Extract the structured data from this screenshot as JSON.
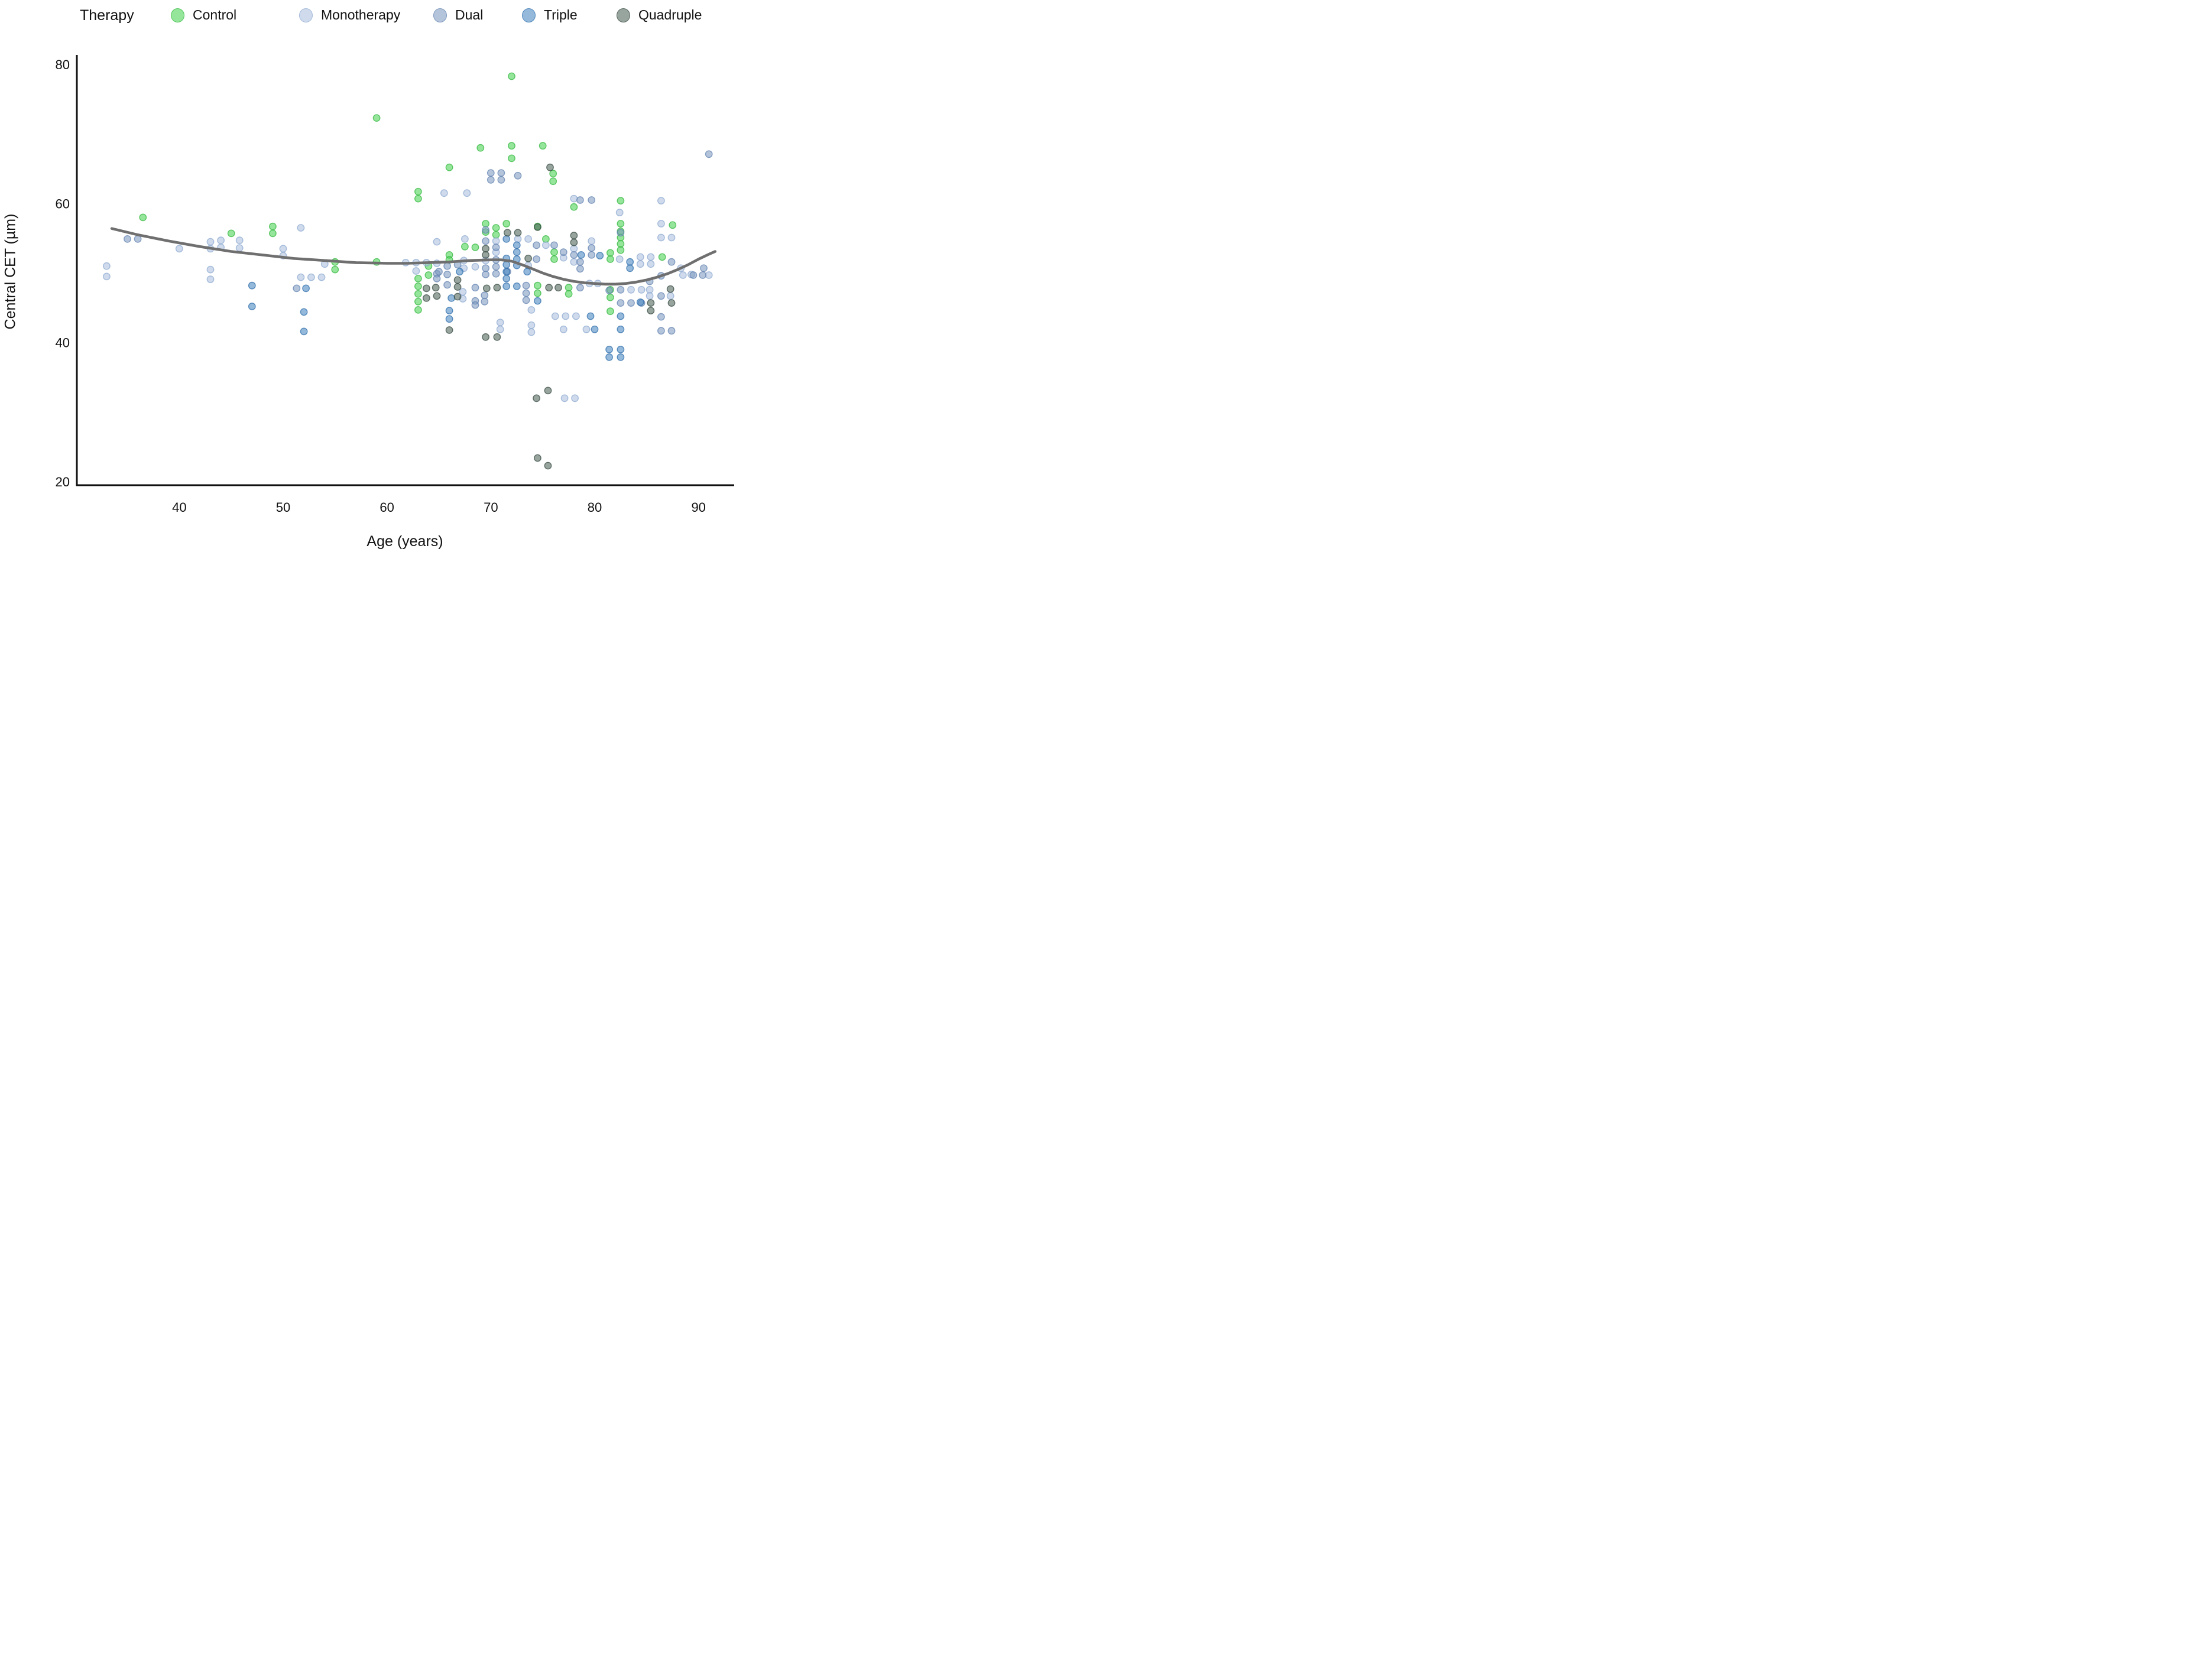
{
  "legend": {
    "title": "Therapy",
    "items": [
      {
        "label": "Control",
        "color": "#3ecf49",
        "stroke": "#2fb53a"
      },
      {
        "label": "Monotherapy",
        "color": "#a7bddd",
        "stroke": "#8aa6cf"
      },
      {
        "label": "Dual",
        "color": "#7795bd",
        "stroke": "#5f7fae"
      },
      {
        "label": "Triple",
        "color": "#3c80bd",
        "stroke": "#2a6aa8"
      },
      {
        "label": "Quadruple",
        "color": "#44594f",
        "stroke": "#33473e"
      }
    ]
  },
  "axes": {
    "x_title": "Age (years)",
    "y_title": "Central CET (µm)",
    "x_ticks": [
      40,
      50,
      60,
      70,
      80,
      90
    ],
    "y_ticks": [
      20,
      40,
      60,
      80
    ],
    "x_range": [
      30.2,
      93.2
    ],
    "y_range": [
      19.4,
      81.3
    ],
    "axis_color": "#111111",
    "grid": false,
    "legend_position": "top"
  },
  "chart_data": {
    "type": "scatter",
    "title": "",
    "xlabel": "Age (years)",
    "ylabel": "Central CET (µm)",
    "marker_opacity": 0.55,
    "series": [
      {
        "name": "Control",
        "color": "#3ecf49",
        "stroke": "#2fb53a",
        "points": [
          [
            36.5,
            58
          ],
          [
            45,
            55.7
          ],
          [
            49,
            56.7
          ],
          [
            49,
            55.7
          ],
          [
            55,
            51.6
          ],
          [
            55,
            50.5
          ],
          [
            59,
            72.3
          ],
          [
            59,
            51.6
          ],
          [
            63,
            61.7
          ],
          [
            63,
            60.7
          ],
          [
            63,
            49.2
          ],
          [
            63,
            48.1
          ],
          [
            63,
            47
          ],
          [
            63,
            45.9
          ],
          [
            63,
            44.7
          ],
          [
            64,
            51
          ],
          [
            64,
            49.7
          ],
          [
            66,
            65.2
          ],
          [
            66,
            52.6
          ],
          [
            66,
            51.9
          ],
          [
            67.5,
            53.8
          ],
          [
            68.5,
            53.7
          ],
          [
            69,
            68
          ],
          [
            69.5,
            57.1
          ],
          [
            69.5,
            55.9
          ],
          [
            70.5,
            56.5
          ],
          [
            70.5,
            55.5
          ],
          [
            71.5,
            57.1
          ],
          [
            72,
            78.3
          ],
          [
            72,
            68.3
          ],
          [
            72,
            66.5
          ],
          [
            74.5,
            56.7
          ],
          [
            74.5,
            48.2
          ],
          [
            74.5,
            47.1
          ],
          [
            75,
            68.3
          ],
          [
            75.3,
            54.9
          ],
          [
            76,
            64.3
          ],
          [
            76,
            63.2
          ],
          [
            76.1,
            53
          ],
          [
            76.1,
            52
          ],
          [
            77.5,
            47.9
          ],
          [
            77.5,
            47
          ],
          [
            78,
            59.5
          ],
          [
            81.5,
            52.9
          ],
          [
            81.5,
            52
          ],
          [
            81.5,
            47.6
          ],
          [
            81.5,
            46.5
          ],
          [
            81.5,
            44.5
          ],
          [
            82.5,
            60.4
          ],
          [
            82.5,
            57.1
          ],
          [
            82.5,
            56
          ],
          [
            82.5,
            55.1
          ],
          [
            82.5,
            54.2
          ],
          [
            82.5,
            53.3
          ],
          [
            86.5,
            52.3
          ],
          [
            87.5,
            56.9
          ]
        ]
      },
      {
        "name": "Monotherapy",
        "color": "#a7bddd",
        "stroke": "#8aa6cf",
        "points": [
          [
            33,
            51
          ],
          [
            33,
            49.5
          ],
          [
            40,
            53.5
          ],
          [
            43,
            54.5
          ],
          [
            43,
            53.5
          ],
          [
            43,
            50.5
          ],
          [
            43,
            49.1
          ],
          [
            44,
            54.7
          ],
          [
            44,
            53.7
          ],
          [
            45.8,
            54.7
          ],
          [
            45.8,
            53.6
          ],
          [
            50,
            53.5
          ],
          [
            50,
            52.5
          ],
          [
            51.7,
            56.5
          ],
          [
            51.7,
            49.4
          ],
          [
            52.7,
            49.4
          ],
          [
            53.7,
            49.4
          ],
          [
            54,
            51.3
          ],
          [
            61.8,
            51.5
          ],
          [
            62.8,
            51.5
          ],
          [
            62.8,
            50.3
          ],
          [
            63.8,
            51.5
          ],
          [
            64.8,
            54.5
          ],
          [
            64.8,
            51.4
          ],
          [
            65.5,
            61.5
          ],
          [
            67.7,
            61.5
          ],
          [
            67.5,
            54.9
          ],
          [
            67.4,
            51.8
          ],
          [
            67.4,
            50.7
          ],
          [
            67.3,
            47.3
          ],
          [
            67.3,
            46.3
          ],
          [
            68.5,
            50.9
          ],
          [
            69.5,
            51.8
          ],
          [
            70.5,
            54.6
          ],
          [
            70.5,
            53
          ],
          [
            70.9,
            42.9
          ],
          [
            70.9,
            41.9
          ],
          [
            72.6,
            54.9
          ],
          [
            73.6,
            54.9
          ],
          [
            73.6,
            51.1
          ],
          [
            73.9,
            44.7
          ],
          [
            73.9,
            42.5
          ],
          [
            73.9,
            41.5
          ],
          [
            75.3,
            54
          ],
          [
            76.2,
            43.8
          ],
          [
            77.2,
            43.8
          ],
          [
            78.2,
            43.8
          ],
          [
            77,
            52.2
          ],
          [
            77,
            41.9
          ],
          [
            77.1,
            32
          ],
          [
            78.1,
            32
          ],
          [
            78,
            60.7
          ],
          [
            78,
            53.5
          ],
          [
            78,
            51.6
          ],
          [
            79.2,
            41.9
          ],
          [
            79.7,
            54.6
          ],
          [
            79.5,
            48.5
          ],
          [
            80.3,
            48.5
          ],
          [
            82.4,
            58.7
          ],
          [
            82.4,
            52
          ],
          [
            83.5,
            47.6
          ],
          [
            84.5,
            47.6
          ],
          [
            85.3,
            47.6
          ],
          [
            85.3,
            46.7
          ],
          [
            84.4,
            52.3
          ],
          [
            84.4,
            51.3
          ],
          [
            85.4,
            52.3
          ],
          [
            85.4,
            51.3
          ],
          [
            86.4,
            60.4
          ],
          [
            86.4,
            57.1
          ],
          [
            86.4,
            55.1
          ],
          [
            87.4,
            55.1
          ],
          [
            87.3,
            46.7
          ],
          [
            88.3,
            50.7
          ],
          [
            88.5,
            49.7
          ],
          [
            89.3,
            49.8
          ],
          [
            91,
            49.7
          ]
        ]
      },
      {
        "name": "Dual",
        "color": "#7795bd",
        "stroke": "#5f7fae",
        "points": [
          [
            35,
            54.9
          ],
          [
            36,
            54.9
          ],
          [
            51.3,
            47.8
          ],
          [
            64.8,
            49.9
          ],
          [
            64.8,
            49.2
          ],
          [
            65,
            50.2
          ],
          [
            65.8,
            51
          ],
          [
            65.8,
            49.8
          ],
          [
            65.8,
            48.3
          ],
          [
            66.8,
            51.2
          ],
          [
            68.5,
            47.9
          ],
          [
            68.5,
            46
          ],
          [
            68.5,
            45.4
          ],
          [
            69.4,
            46.8
          ],
          [
            69.4,
            45.9
          ],
          [
            69.5,
            56.2
          ],
          [
            69.5,
            54.6
          ],
          [
            69.5,
            50.7
          ],
          [
            69.5,
            49.8
          ],
          [
            70,
            64.4
          ],
          [
            70,
            63.4
          ],
          [
            70.5,
            53.7
          ],
          [
            70.5,
            51.9
          ],
          [
            70.5,
            50.9
          ],
          [
            70.5,
            49.9
          ],
          [
            71,
            64.4
          ],
          [
            71,
            63.4
          ],
          [
            71.6,
            50.2
          ],
          [
            72.6,
            64
          ],
          [
            73.4,
            48.2
          ],
          [
            73.4,
            47.1
          ],
          [
            73.4,
            46.1
          ],
          [
            74.4,
            54
          ],
          [
            74.4,
            52
          ],
          [
            76.1,
            54
          ],
          [
            77,
            53
          ],
          [
            78,
            52.6
          ],
          [
            78.6,
            60.5
          ],
          [
            78.6,
            51.6
          ],
          [
            78.6,
            50.6
          ],
          [
            78.6,
            47.9
          ],
          [
            79.7,
            60.5
          ],
          [
            79.7,
            53.6
          ],
          [
            79.7,
            52.6
          ],
          [
            81.4,
            47.5
          ],
          [
            82.5,
            55.8
          ],
          [
            82.5,
            47.6
          ],
          [
            82.5,
            45.7
          ],
          [
            83.5,
            45.7
          ],
          [
            84.5,
            45.7
          ],
          [
            85.3,
            48.8
          ],
          [
            86.4,
            49.6
          ],
          [
            86.4,
            46.7
          ],
          [
            86.4,
            43.7
          ],
          [
            86.4,
            41.7
          ],
          [
            87.4,
            41.7
          ],
          [
            87.4,
            51.6
          ],
          [
            89.5,
            49.7
          ],
          [
            90.4,
            49.7
          ],
          [
            90.5,
            50.7
          ],
          [
            91,
            67.1
          ]
        ]
      },
      {
        "name": "Triple",
        "color": "#3c80bd",
        "stroke": "#2a6aa8",
        "points": [
          [
            47,
            48.2
          ],
          [
            47,
            45.2
          ],
          [
            52.2,
            47.8
          ],
          [
            52,
            44.4
          ],
          [
            52,
            41.6
          ],
          [
            66,
            44.6
          ],
          [
            66,
            43.4
          ],
          [
            66.2,
            46.4
          ],
          [
            67,
            50.2
          ],
          [
            71.5,
            54.9
          ],
          [
            71.5,
            52.1
          ],
          [
            71.5,
            51.2
          ],
          [
            71.5,
            50.2
          ],
          [
            71.5,
            49.2
          ],
          [
            71.5,
            48.1
          ],
          [
            72.5,
            54
          ],
          [
            72.5,
            53
          ],
          [
            72.5,
            52
          ],
          [
            72.5,
            51.1
          ],
          [
            72.5,
            48.1
          ],
          [
            73.5,
            50.2
          ],
          [
            74.5,
            46
          ],
          [
            78.7,
            52.6
          ],
          [
            79.6,
            43.8
          ],
          [
            80,
            41.9
          ],
          [
            80.5,
            52.5
          ],
          [
            81.4,
            39
          ],
          [
            82.5,
            39
          ],
          [
            81.4,
            37.9
          ],
          [
            82.5,
            37.9
          ],
          [
            82.5,
            43.8
          ],
          [
            82.5,
            41.9
          ],
          [
            83.4,
            51.6
          ],
          [
            83.4,
            50.7
          ],
          [
            84.4,
            45.8
          ]
        ]
      },
      {
        "name": "Quadruple",
        "color": "#44594f",
        "stroke": "#33473e",
        "points": [
          [
            63.8,
            47.8
          ],
          [
            63.8,
            46.4
          ],
          [
            64.7,
            47.9
          ],
          [
            64.8,
            46.7
          ],
          [
            66,
            41.8
          ],
          [
            66.8,
            49
          ],
          [
            66.8,
            48
          ],
          [
            66.8,
            46.6
          ],
          [
            69.5,
            53.5
          ],
          [
            69.5,
            52.6
          ],
          [
            69.6,
            47.8
          ],
          [
            70.6,
            47.9
          ],
          [
            69.5,
            40.8
          ],
          [
            70.6,
            40.8
          ],
          [
            71.6,
            55.8
          ],
          [
            72.6,
            55.8
          ],
          [
            73.6,
            52.1
          ],
          [
            74.5,
            56.6
          ],
          [
            75.6,
            47.9
          ],
          [
            76.5,
            47.9
          ],
          [
            75.7,
            65.2
          ],
          [
            78,
            55.4
          ],
          [
            78,
            54.4
          ],
          [
            85.4,
            45.7
          ],
          [
            85.4,
            44.6
          ],
          [
            87.4,
            45.7
          ],
          [
            87.3,
            47.7
          ],
          [
            74.4,
            32
          ],
          [
            75.5,
            33.1
          ],
          [
            74.5,
            23.4
          ],
          [
            75.5,
            22.3
          ]
        ]
      }
    ],
    "trend": {
      "name": "loess-smooth",
      "color": "#6f6f6f",
      "points": [
        [
          33.5,
          56.4
        ],
        [
          36,
          55.5
        ],
        [
          39,
          54.6
        ],
        [
          42,
          53.8
        ],
        [
          45,
          53.1
        ],
        [
          48,
          52.6
        ],
        [
          51,
          52.1
        ],
        [
          54,
          51.8
        ],
        [
          57,
          51.5
        ],
        [
          60,
          51.4
        ],
        [
          62,
          51.4
        ],
        [
          64,
          51.5
        ],
        [
          66,
          51.6
        ],
        [
          68,
          51.8
        ],
        [
          70,
          51.9
        ],
        [
          71,
          51.9
        ],
        [
          72,
          51.7
        ],
        [
          73,
          51.2
        ],
        [
          74,
          50.6
        ],
        [
          75,
          50
        ],
        [
          76,
          49.5
        ],
        [
          77,
          49.1
        ],
        [
          78,
          48.8
        ],
        [
          79,
          48.6
        ],
        [
          80,
          48.5
        ],
        [
          81,
          48.4
        ],
        [
          82,
          48.4
        ],
        [
          83,
          48.5
        ],
        [
          84,
          48.7
        ],
        [
          85,
          49
        ],
        [
          86,
          49.4
        ],
        [
          87,
          49.9
        ],
        [
          88,
          50.5
        ],
        [
          89,
          51.2
        ],
        [
          90,
          52
        ],
        [
          91,
          52.7
        ],
        [
          91.6,
          53.1
        ]
      ]
    }
  }
}
